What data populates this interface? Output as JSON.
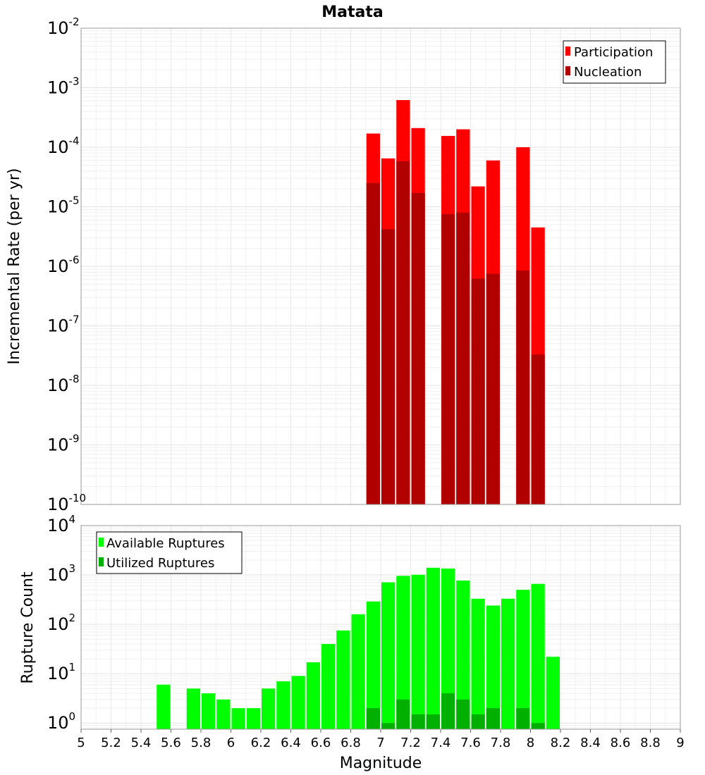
{
  "chart_data": [
    {
      "type": "bar",
      "title": "Matata",
      "xlabel": "",
      "ylabel": "Incremental Rate (per yr)",
      "yscale": "log",
      "ylim": [
        1e-10,
        0.01
      ],
      "xlim": [
        5,
        9
      ],
      "bin_width": 0.1,
      "grid": true,
      "legend_position": "top-right",
      "y_tick_bases": [
        "10",
        "10",
        "10",
        "10",
        "10",
        "10",
        "10",
        "10",
        "10"
      ],
      "y_tick_exps": [
        "-10",
        "-9",
        "-8",
        "-7",
        "-6",
        "-5",
        "-4",
        "-3",
        "-2"
      ],
      "series": [
        {
          "name": "Participation",
          "color": "#ff0000",
          "x": [
            6.95,
            7.05,
            7.15,
            7.25,
            7.45,
            7.55,
            7.65,
            7.75,
            7.95,
            8.05
          ],
          "values": [
            0.00017,
            6.5e-05,
            0.00062,
            0.00021,
            0.000155,
            0.0002,
            2.2e-05,
            6e-05,
            0.0001,
            4.5e-06
          ]
        },
        {
          "name": "Nucleation",
          "color": "#b00000",
          "x": [
            6.95,
            7.05,
            7.15,
            7.25,
            7.45,
            7.55,
            7.65,
            7.75,
            7.95,
            8.05
          ],
          "values": [
            2.5e-05,
            4.2e-06,
            5.8e-05,
            1.7e-05,
            7.5e-06,
            8e-06,
            6.2e-07,
            7.5e-07,
            8.5e-07,
            3.3e-08
          ]
        }
      ]
    },
    {
      "type": "bar",
      "title": "",
      "xlabel": "Magnitude",
      "ylabel": "Rupture Count",
      "yscale": "log",
      "ylim": [
        0.75,
        10000.0
      ],
      "xlim": [
        5,
        9
      ],
      "bin_width": 0.1,
      "grid": true,
      "legend_position": "top-left",
      "x_ticks": [
        "5",
        "5.2",
        "5.4",
        "5.6",
        "5.8",
        "6",
        "6.2",
        "6.4",
        "6.6",
        "6.8",
        "7",
        "7.2",
        "7.4",
        "7.6",
        "7.8",
        "8",
        "8.2",
        "8.4",
        "8.6",
        "8.8",
        "9"
      ],
      "y_tick_bases": [
        "10",
        "10",
        "10",
        "10",
        "10"
      ],
      "y_tick_exps": [
        "0",
        "1",
        "2",
        "3",
        "4"
      ],
      "series": [
        {
          "name": "Available Ruptures",
          "color": "#00ff00",
          "x": [
            5.55,
            5.75,
            5.85,
            5.95,
            6.05,
            6.15,
            6.25,
            6.35,
            6.45,
            6.55,
            6.65,
            6.75,
            6.85,
            6.95,
            7.05,
            7.15,
            7.25,
            7.35,
            7.45,
            7.55,
            7.65,
            7.75,
            7.85,
            7.95,
            8.05,
            8.15
          ],
          "values": [
            6,
            5,
            4,
            3,
            2,
            2,
            5,
            7,
            9,
            17,
            40,
            75,
            160,
            290,
            710,
            960,
            1010,
            1400,
            1350,
            770,
            330,
            240,
            330,
            500,
            660,
            22
          ]
        },
        {
          "name": "Utilized Ruptures",
          "color": "#00b000",
          "x": [
            6.95,
            7.05,
            7.15,
            7.25,
            7.35,
            7.45,
            7.55,
            7.65,
            7.75,
            7.95,
            8.05
          ],
          "values": [
            2,
            1,
            3,
            1.5,
            1.5,
            4,
            3,
            1.5,
            2,
            2,
            1
          ]
        }
      ]
    }
  ]
}
